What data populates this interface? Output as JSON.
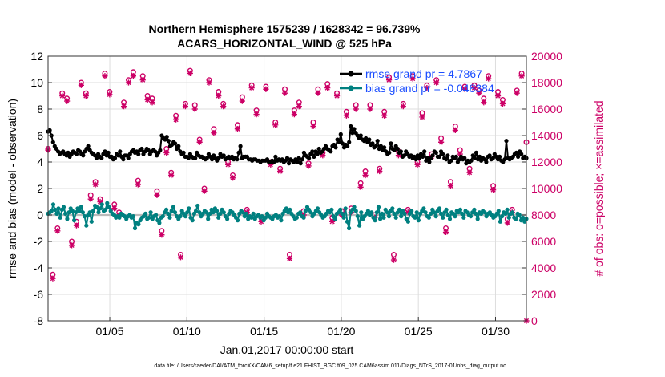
{
  "chart_data": {
    "type": "line",
    "title_line1": "Northern Hemisphere 1575239 / 1628342 = 96.739%",
    "title_line2": "ACARS_HORIZONTAL_WIND @ 525 hPa",
    "xlabel": "Jan.01,2017 00:00:00 start",
    "ylabel_left": "rmse and bias (model - observation)",
    "ylabel_right": "# of obs: o=possible; ×=assimilated",
    "footer": "data file: /Users/raeder/DAI/ATM_forcXX/CAM6_setup/f.e21.FHIST_BGC.f09_025.CAM6assim.011/Diags_NTrS_2017-01/obs_diag_output.nc",
    "x_range_days": [
      1,
      32
    ],
    "x_ticks": [
      5,
      10,
      15,
      20,
      25,
      30
    ],
    "x_tick_labels": [
      "01/05",
      "01/10",
      "01/15",
      "01/20",
      "01/25",
      "01/30"
    ],
    "ylim_left": [
      -8,
      12
    ],
    "y_ticks_left": [
      "12",
      "10",
      "8",
      "6",
      "4",
      "2",
      "0",
      "-2",
      "-4",
      "-6",
      "-8"
    ],
    "ylim_right": [
      0,
      20000
    ],
    "y_ticks_right": [
      "20000",
      "18000",
      "16000",
      "14000",
      "12000",
      "10000",
      "8000",
      "6000",
      "4000",
      "2000",
      "0"
    ],
    "legend": [
      "rmse grand pr = 4.7867",
      "bias grand pr = -0.048384"
    ],
    "legend_position": "top-right",
    "colors": {
      "rmse": "#000000",
      "bias": "#008080",
      "obs": "#cc0066",
      "grid": "#dddddd",
      "zero": "#bbbbbb"
    },
    "rmse": [
      6.3,
      6.4,
      6.0,
      5.5,
      5.2,
      5.0,
      4.8,
      4.6,
      4.7,
      4.8,
      4.6,
      4.5,
      4.7,
      4.4,
      4.6,
      4.8,
      4.7,
      4.6,
      4.9,
      4.8,
      4.6,
      4.5,
      4.8,
      5.0,
      5.2,
      4.9,
      4.7,
      4.6,
      4.5,
      4.3,
      4.6,
      4.4,
      4.3,
      4.6,
      4.8,
      4.5,
      4.7,
      4.4,
      4.4,
      4.2,
      4.3,
      4.6,
      4.5,
      4.8,
      4.4,
      4.2,
      4.5,
      4.5,
      4.3,
      4.6,
      4.8,
      4.9,
      4.7,
      4.8,
      4.6,
      4.9,
      5.0,
      4.6,
      4.8,
      5.0,
      4.9,
      4.6,
      4.8,
      4.9,
      4.8,
      4.5,
      4.7,
      4.9,
      6.0,
      5.8,
      5.7,
      5.9,
      5.6,
      5.2,
      5.3,
      5.5,
      5.4,
      5.0,
      5.2,
      4.8,
      4.6,
      4.7,
      4.4,
      4.4,
      4.3,
      4.6,
      4.4,
      4.3,
      4.3,
      4.7,
      4.5,
      4.4,
      4.4,
      4.3,
      4.2,
      4.3,
      4.6,
      4.4,
      4.2,
      4.5,
      4.3,
      4.1,
      4.3,
      4.6,
      4.4,
      4.5,
      4.2,
      4.3,
      4.4,
      4.3,
      4.4,
      4.2,
      4.3,
      4.2,
      4.7,
      5.2,
      4.3,
      4.4,
      4.4,
      4.4,
      4.2,
      4.2,
      4.1,
      4.2,
      4.2,
      4.1,
      4.1,
      4.0,
      4.1,
      4.1,
      4.1,
      4.2,
      4.0,
      4.0,
      4.1,
      4.0,
      4.4,
      4.1,
      4.2,
      4.1,
      4.2,
      4.0,
      4.1,
      4.3,
      3.9,
      4.2,
      4.1,
      4.0,
      4.2,
      4.0,
      4.3,
      3.9,
      4.2,
      4.7,
      4.5,
      4.4,
      4.3,
      4.6,
      4.8,
      4.4,
      4.8,
      4.6,
      5.0,
      4.7,
      4.8,
      5.0,
      5.2,
      5.0,
      4.9,
      4.8,
      5.2,
      5.3,
      5.1,
      5.7,
      5.5,
      6.1,
      5.4,
      5.1,
      5.3,
      5.2,
      5.5,
      6.7,
      6.2,
      6.5,
      6.2,
      6.0,
      5.8,
      6.0,
      5.7,
      5.6,
      5.8,
      5.5,
      5.7,
      5.3,
      5.4,
      5.1,
      5.2,
      5.6,
      5.0,
      5.2,
      4.9,
      5.1,
      4.8,
      4.6,
      4.7,
      5.4,
      5.0,
      4.9,
      5.2,
      5.0,
      4.7,
      4.8,
      4.4,
      4.5,
      4.8,
      4.6,
      4.4,
      4.5,
      4.3,
      4.4,
      4.2,
      4.5,
      4.3,
      4.6,
      4.4,
      4.8,
      4.1,
      4.3,
      4.0,
      4.3,
      4.5,
      4.8,
      4.7,
      4.4,
      4.4,
      4.8,
      4.6,
      4.3,
      4.2,
      4.5,
      4.0,
      4.1,
      4.4,
      4.3,
      4.4,
      4.0,
      4.2,
      4.4,
      4.2,
      4.3,
      3.9,
      4.1,
      4.0,
      4.1,
      4.5,
      4.3,
      4.7,
      4.2,
      4.4,
      4.1,
      4.3,
      4.2,
      4.0,
      4.4,
      4.5,
      4.2,
      4.3,
      4.6,
      4.4,
      4.2,
      4.4,
      4.1,
      4.0,
      4.2,
      5.6,
      4.3,
      4.2,
      4.3,
      4.4,
      4.6,
      4.7,
      4.4,
      4.8,
      4.6,
      4.3,
      4.4,
      4.3
    ],
    "bias": [
      0.1,
      0.2,
      0.3,
      0.8,
      0.4,
      0.1,
      0.5,
      -0.2,
      0.4,
      0.6,
      0.1,
      -0.3,
      0.2,
      0.5,
      0.3,
      -0.4,
      0.2,
      0.5,
      0.3,
      0.6,
      0.2,
      -0.1,
      -0.8,
      0.0,
      0.2,
      -0.5,
      0.3,
      0.7,
      0.6,
      0.2,
      0.5,
      0.8,
      0.3,
      0.4,
      0.9,
      0.6,
      0.3,
      0.1,
      0.0,
      -0.2,
      -0.1,
      -0.2,
      0.1,
      0.0,
      -0.1,
      -0.3,
      -0.1,
      0.0,
      -0.2,
      -0.1,
      -1.0,
      -0.6,
      -0.7,
      -0.4,
      -0.2,
      -0.1,
      0.1,
      -0.3,
      -0.2,
      0.2,
      -0.3,
      -0.1,
      0.0,
      -0.4,
      -0.6,
      -0.2,
      -0.1,
      0.2,
      0.4,
      0.1,
      -0.2,
      0.3,
      0.6,
      0.2,
      -0.1,
      -0.3,
      -0.1,
      0.3,
      0.1,
      -0.1,
      0.2,
      0.5,
      -0.2,
      -0.4,
      0.1,
      0.3,
      0.7,
      0.2,
      -0.1,
      0.1,
      0.3,
      0.2,
      -0.3,
      0.1,
      0.4,
      0.2,
      0.5,
      0.3,
      -0.2,
      0.1,
      0.4,
      0.2,
      -0.1,
      -0.3,
      0.1,
      0.3,
      0.2,
      0.0,
      -0.2,
      -0.4,
      0.1,
      0.3,
      0.2,
      -0.1,
      0.1,
      -0.3,
      -0.1,
      -0.2,
      0.1,
      -0.3,
      -0.1,
      0.0,
      -0.2,
      -0.1,
      -0.4,
      -0.2,
      0.1,
      -0.1,
      -0.2,
      -0.3,
      -0.1,
      0.0,
      -0.2,
      -0.1,
      -0.4,
      0.1,
      0.3,
      0.5,
      0.2,
      0.4,
      0.1,
      -0.1,
      -0.3,
      -0.2,
      0.1,
      0.2,
      -0.1,
      -0.2,
      0.3,
      0.6,
      0.4,
      0.2,
      -0.1,
      0.1,
      0.3,
      0.5,
      0.2,
      0.0,
      -0.2,
      -0.1,
      0.1,
      0.3,
      0.2,
      0.4,
      -0.1,
      -0.3,
      0.1,
      0.2,
      0.4,
      0.1,
      -0.2,
      0.5,
      -0.5,
      -1.0,
      0.2,
      0.4,
      0.6,
      0.3,
      -0.1,
      -0.8,
      0.2,
      -0.3,
      -0.1,
      0.1,
      0.3,
      0.0,
      0.2,
      -0.2,
      -0.4,
      0.2,
      0.6,
      -0.3,
      0.1,
      -0.2,
      0.4,
      0.2,
      -0.1,
      0.3,
      0.5,
      0.1,
      -0.2,
      0.2,
      0.4,
      -0.1,
      0.3,
      0.1,
      -0.3,
      -0.5,
      0.1,
      0.3,
      -0.1,
      -0.2,
      0.2,
      -0.4,
      0.1,
      0.3,
      0.5,
      0.2,
      -0.1,
      -0.2,
      0.1,
      0.4,
      0.2,
      -0.1,
      0.3,
      0.5,
      0.1,
      -0.2,
      0.2,
      0.4,
      0.0,
      -0.3,
      0.2,
      0.1,
      -0.1,
      0.3,
      0.2,
      0.4,
      0.1,
      -0.2,
      0.3,
      0.2,
      0.0,
      -0.1,
      0.2,
      0.4,
      0.1,
      -0.3,
      0.2,
      0.1,
      0.3,
      0.2,
      -0.1,
      0.1,
      0.2,
      0.0,
      -0.2,
      -0.1,
      0.1,
      0.3,
      -0.5,
      -0.1,
      0.2,
      0.1,
      0.4,
      -0.2,
      0.1,
      0.2,
      -0.2,
      -0.3,
      0.1,
      0.0,
      -0.4,
      -0.2,
      -0.5,
      -0.3
    ],
    "obs_possible": [
      13000,
      3500,
      7000,
      17200,
      16800,
      6000,
      7500,
      18000,
      17200,
      9500,
      10500,
      9200,
      18700,
      17300,
      8800,
      8200,
      16500,
      18200,
      18800,
      10600,
      18500,
      17000,
      16800,
      9800,
      6800,
      13000,
      11200,
      15500,
      5000,
      16400,
      18900,
      16300,
      13700,
      10000,
      18200,
      14500,
      17300,
      16400,
      12000,
      11000,
      14800,
      16900,
      8400,
      17800,
      15900,
      7800,
      17700,
      12000,
      15000,
      11500,
      17500,
      5000,
      15900,
      16500,
      8300,
      11900,
      15000,
      17500,
      12700,
      17900,
      7800,
      17200,
      8300,
      15800,
      8500,
      16300,
      10400,
      11300,
      16300,
      8000,
      11500,
      15800,
      18400,
      5000,
      12800,
      16400,
      8400,
      18500,
      12000,
      15700,
      17800,
      12600,
      18200,
      13800,
      7000,
      10500,
      14700,
      12900,
      17700,
      11500,
      17800,
      17400,
      16800,
      18500,
      10200,
      17300,
      16700,
      7700,
      8400,
      17400,
      18700,
      13500
    ],
    "obs_assimilated": [
      12900,
      3200,
      6800,
      17000,
      16600,
      5700,
      7200,
      17800,
      17000,
      9200,
      10300,
      9000,
      18500,
      17100,
      8500,
      8000,
      16200,
      18000,
      18500,
      10300,
      18200,
      16700,
      16500,
      9500,
      6500,
      12700,
      11000,
      15200,
      4800,
      16200,
      18700,
      16000,
      13500,
      9800,
      18000,
      14200,
      17000,
      16200,
      11800,
      10800,
      14500,
      16600,
      8200,
      17600,
      15600,
      7500,
      17500,
      11800,
      14800,
      11300,
      17200,
      4700,
      15600,
      16200,
      8000,
      11700,
      14700,
      17200,
      12500,
      17600,
      7500,
      17000,
      8000,
      15500,
      8200,
      16000,
      10100,
      11000,
      16000,
      7800,
      11300,
      15500,
      18200,
      4600,
      12500,
      16200,
      8200,
      18300,
      11800,
      15400,
      17600,
      12400,
      18000,
      13500,
      6700,
      10200,
      14400,
      12600,
      17500,
      11200,
      17600,
      17200,
      16500,
      18300,
      9900,
      17000,
      16400,
      7400,
      8200,
      17200,
      18500,
      0
    ]
  }
}
